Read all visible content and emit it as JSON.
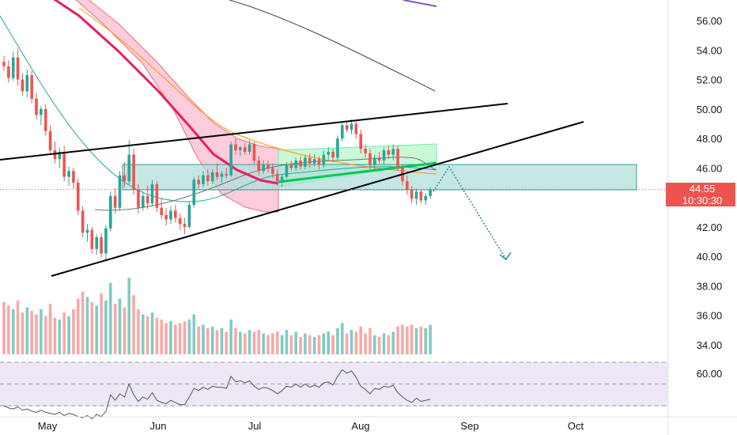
{
  "chart_data": {
    "type": "candlestick",
    "price_axis": {
      "ticks": [
        "56.00",
        "54.00",
        "52.00",
        "50.00",
        "48.00",
        "46.00",
        "44.00",
        "42.00",
        "40.00",
        "38.00",
        "36.00",
        "34.00"
      ],
      "range": [
        33.0,
        57.5
      ]
    },
    "rsi_axis": {
      "ticks": [
        "60.00"
      ],
      "range": [
        25,
        90
      ],
      "upper_band": 70,
      "mid": 50,
      "lower_band": 30
    },
    "time_axis": {
      "ticks": [
        "May",
        "Jun",
        "Jul",
        "Aug",
        "Sep",
        "Oct"
      ]
    },
    "last_price": {
      "value": "44.55",
      "countdown": "10:30:30",
      "color": "#ef5350"
    },
    "colors": {
      "up": "#26a69a",
      "down": "#ef5350",
      "vol_up": "#80cbc4",
      "vol_down": "#f7a9a7",
      "rsi": "#7e57c2",
      "band": "#f23645",
      "triangle_line": "#000000",
      "projection": "#2f89a8"
    },
    "candles": [
      [
        53.2,
        53.6,
        52.6,
        52.9
      ],
      [
        52.9,
        53.3,
        51.8,
        52.1
      ],
      [
        52.1,
        53.9,
        51.9,
        53.5
      ],
      [
        53.5,
        54.1,
        51.6,
        52.0
      ],
      [
        52.0,
        52.4,
        50.9,
        51.2
      ],
      [
        51.2,
        52.7,
        50.8,
        52.3
      ],
      [
        52.3,
        52.6,
        50.4,
        50.7
      ],
      [
        50.7,
        51.1,
        49.3,
        49.6
      ],
      [
        49.6,
        50.2,
        48.9,
        50.0
      ],
      [
        50.0,
        50.3,
        48.2,
        48.5
      ],
      [
        48.5,
        48.9,
        46.9,
        47.2
      ],
      [
        47.2,
        47.8,
        46.3,
        46.6
      ],
      [
        46.6,
        47.4,
        46.0,
        47.1
      ],
      [
        47.1,
        47.5,
        45.1,
        45.4
      ],
      [
        45.4,
        46.1,
        44.8,
        45.8
      ],
      [
        45.8,
        46.0,
        44.6,
        45.0
      ],
      [
        45.0,
        45.3,
        42.8,
        43.1
      ],
      [
        43.1,
        43.4,
        41.3,
        41.6
      ],
      [
        41.6,
        42.2,
        41.0,
        41.8
      ],
      [
        41.8,
        42.0,
        40.2,
        40.5
      ],
      [
        40.5,
        41.5,
        40.1,
        41.3
      ],
      [
        41.3,
        41.6,
        39.9,
        40.2
      ],
      [
        40.2,
        42.1,
        39.8,
        41.9
      ],
      [
        41.9,
        44.4,
        41.7,
        44.1
      ],
      [
        44.1,
        44.6,
        42.9,
        43.3
      ],
      [
        43.3,
        45.8,
        43.1,
        45.5
      ],
      [
        45.5,
        46.4,
        44.7,
        45.1
      ],
      [
        45.1,
        47.9,
        44.9,
        46.9
      ],
      [
        46.9,
        47.3,
        44.2,
        44.5
      ],
      [
        44.5,
        44.9,
        42.9,
        43.3
      ],
      [
        43.3,
        44.4,
        43.1,
        44.1
      ],
      [
        44.1,
        44.8,
        43.2,
        43.6
      ],
      [
        43.6,
        45.2,
        43.4,
        44.9
      ],
      [
        44.9,
        45.1,
        43.0,
        43.3
      ],
      [
        43.3,
        43.9,
        42.5,
        42.8
      ],
      [
        42.8,
        43.3,
        42.1,
        42.5
      ],
      [
        42.5,
        43.4,
        42.2,
        43.1
      ],
      [
        43.1,
        43.5,
        42.3,
        42.6
      ],
      [
        42.6,
        42.9,
        41.8,
        42.2
      ],
      [
        42.2,
        42.6,
        41.5,
        42.0
      ],
      [
        42.0,
        43.7,
        41.9,
        43.5
      ],
      [
        43.5,
        45.4,
        43.3,
        45.2
      ],
      [
        45.2,
        45.5,
        44.6,
        44.9
      ],
      [
        44.9,
        45.8,
        44.7,
        45.5
      ],
      [
        45.5,
        45.9,
        44.8,
        45.1
      ],
      [
        45.1,
        45.9,
        44.9,
        45.7
      ],
      [
        45.7,
        46.3,
        45.2,
        45.4
      ],
      [
        45.4,
        45.8,
        45.0,
        45.6
      ],
      [
        45.6,
        46.0,
        45.3,
        45.5
      ],
      [
        45.5,
        47.8,
        45.4,
        47.6
      ],
      [
        47.6,
        48.0,
        46.9,
        47.2
      ],
      [
        47.2,
        47.5,
        46.8,
        47.4
      ],
      [
        47.4,
        47.7,
        46.9,
        47.1
      ],
      [
        47.1,
        47.9,
        46.9,
        47.6
      ],
      [
        47.6,
        47.8,
        46.3,
        46.5
      ],
      [
        46.5,
        46.8,
        45.5,
        45.8
      ],
      [
        45.8,
        46.5,
        45.6,
        46.2
      ],
      [
        46.2,
        46.5,
        45.7,
        46.0
      ],
      [
        46.0,
        46.3,
        45.3,
        45.6
      ],
      [
        45.6,
        45.9,
        44.8,
        45.1
      ],
      [
        45.1,
        45.6,
        44.7,
        45.4
      ],
      [
        45.4,
        46.4,
        45.3,
        46.2
      ],
      [
        46.2,
        46.5,
        45.8,
        46.0
      ],
      [
        46.0,
        46.7,
        45.8,
        46.5
      ],
      [
        46.5,
        46.8,
        45.9,
        46.1
      ],
      [
        46.1,
        46.9,
        45.9,
        46.7
      ],
      [
        46.7,
        47.0,
        46.0,
        46.3
      ],
      [
        46.3,
        46.9,
        46.1,
        46.6
      ],
      [
        46.6,
        46.8,
        45.9,
        46.2
      ],
      [
        46.2,
        47.2,
        46.0,
        46.9
      ],
      [
        46.9,
        47.4,
        46.5,
        47.1
      ],
      [
        47.1,
        47.3,
        46.4,
        46.7
      ],
      [
        46.7,
        48.2,
        46.5,
        48.0
      ],
      [
        48.0,
        49.1,
        47.8,
        48.9
      ],
      [
        48.9,
        49.2,
        48.4,
        48.6
      ],
      [
        48.6,
        49.3,
        48.3,
        49.0
      ],
      [
        49.0,
        49.2,
        48.0,
        48.3
      ],
      [
        48.3,
        48.6,
        47.0,
        47.3
      ],
      [
        47.3,
        47.6,
        46.7,
        47.0
      ],
      [
        47.0,
        47.3,
        45.9,
        46.2
      ],
      [
        46.2,
        46.9,
        45.9,
        46.7
      ],
      [
        46.7,
        47.1,
        46.3,
        46.5
      ],
      [
        46.5,
        47.4,
        46.2,
        47.2
      ],
      [
        47.2,
        47.5,
        46.6,
        46.9
      ],
      [
        46.9,
        47.6,
        46.5,
        47.3
      ],
      [
        47.3,
        47.5,
        45.8,
        46.0
      ],
      [
        46.0,
        46.2,
        44.8,
        45.1
      ],
      [
        45.1,
        45.5,
        44.2,
        44.5
      ],
      [
        44.5,
        44.8,
        43.6,
        43.9
      ],
      [
        43.9,
        44.6,
        43.5,
        44.4
      ],
      [
        44.4,
        44.5,
        43.6,
        43.8
      ],
      [
        43.8,
        44.3,
        43.5,
        44.1
      ],
      [
        44.1,
        44.7,
        43.9,
        44.55
      ]
    ],
    "volume": [
      [
        3.0,
        1
      ],
      [
        2.8,
        1
      ],
      [
        2.6,
        0
      ],
      [
        3.1,
        1
      ],
      [
        2.4,
        1
      ],
      [
        2.7,
        0
      ],
      [
        2.5,
        1
      ],
      [
        2.3,
        1
      ],
      [
        2.6,
        0
      ],
      [
        2.2,
        1
      ],
      [
        2.9,
        1
      ],
      [
        2.1,
        1
      ],
      [
        2.0,
        0
      ],
      [
        2.4,
        1
      ],
      [
        2.2,
        0
      ],
      [
        2.6,
        1
      ],
      [
        3.2,
        1
      ],
      [
        3.6,
        1
      ],
      [
        3.3,
        0
      ],
      [
        3.0,
        1
      ],
      [
        2.8,
        0
      ],
      [
        3.5,
        1
      ],
      [
        3.1,
        0
      ],
      [
        4.1,
        0
      ],
      [
        2.9,
        1
      ],
      [
        3.2,
        0
      ],
      [
        2.7,
        1
      ],
      [
        4.4,
        0
      ],
      [
        3.4,
        1
      ],
      [
        2.6,
        1
      ],
      [
        2.3,
        0
      ],
      [
        2.2,
        1
      ],
      [
        2.4,
        0
      ],
      [
        2.1,
        1
      ],
      [
        2.0,
        1
      ],
      [
        1.8,
        1
      ],
      [
        1.9,
        0
      ],
      [
        1.7,
        1
      ],
      [
        1.8,
        1
      ],
      [
        1.9,
        1
      ],
      [
        2.0,
        0
      ],
      [
        2.3,
        0
      ],
      [
        1.6,
        1
      ],
      [
        1.7,
        0
      ],
      [
        1.5,
        1
      ],
      [
        1.6,
        0
      ],
      [
        1.4,
        1
      ],
      [
        1.5,
        0
      ],
      [
        1.3,
        1
      ],
      [
        2.0,
        0
      ],
      [
        1.5,
        1
      ],
      [
        1.3,
        0
      ],
      [
        1.2,
        1
      ],
      [
        1.4,
        0
      ],
      [
        1.3,
        1
      ],
      [
        1.4,
        1
      ],
      [
        1.2,
        0
      ],
      [
        1.1,
        1
      ],
      [
        1.2,
        1
      ],
      [
        1.3,
        1
      ],
      [
        1.1,
        0
      ],
      [
        1.4,
        0
      ],
      [
        1.1,
        1
      ],
      [
        1.3,
        0
      ],
      [
        1.0,
        1
      ],
      [
        1.2,
        0
      ],
      [
        1.1,
        1
      ],
      [
        1.0,
        0
      ],
      [
        1.1,
        1
      ],
      [
        1.2,
        0
      ],
      [
        1.3,
        0
      ],
      [
        1.1,
        1
      ],
      [
        1.5,
        0
      ],
      [
        1.8,
        0
      ],
      [
        1.2,
        1
      ],
      [
        1.4,
        0
      ],
      [
        1.3,
        1
      ],
      [
        1.6,
        1
      ],
      [
        1.2,
        1
      ],
      [
        1.5,
        1
      ],
      [
        1.1,
        0
      ],
      [
        1.0,
        1
      ],
      [
        1.2,
        0
      ],
      [
        1.1,
        1
      ],
      [
        1.3,
        0
      ],
      [
        1.6,
        1
      ],
      [
        1.7,
        1
      ],
      [
        1.6,
        1
      ],
      [
        1.7,
        1
      ],
      [
        1.5,
        0
      ],
      [
        1.6,
        1
      ],
      [
        1.5,
        0
      ],
      [
        1.7,
        0
      ]
    ],
    "rsi": [
      30,
      28,
      27,
      29,
      26,
      27,
      25,
      24,
      26,
      24,
      23,
      22,
      24,
      21,
      23,
      22,
      20,
      19,
      21,
      18,
      22,
      20,
      25,
      40,
      35,
      41,
      38,
      50,
      40,
      34,
      38,
      36,
      42,
      35,
      33,
      32,
      35,
      33,
      31,
      31,
      38,
      46,
      44,
      47,
      45,
      48,
      47,
      47,
      46,
      57,
      52,
      53,
      51,
      53,
      48,
      45,
      47,
      46,
      44,
      41,
      44,
      48,
      47,
      50,
      47,
      50,
      47,
      49,
      47,
      51,
      52,
      49,
      57,
      63,
      60,
      62,
      56,
      48,
      45,
      41,
      46,
      45,
      48,
      47,
      49,
      42,
      38,
      35,
      33,
      37,
      34,
      35,
      36
    ]
  }
}
